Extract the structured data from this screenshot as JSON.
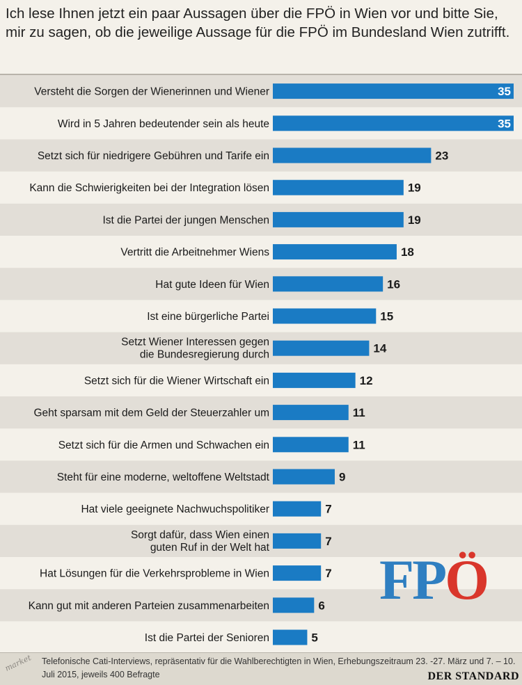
{
  "question": "Ich lese Ihnen jetzt ein paar Aussagen über die FPÖ in Wien vor und bitte Sie, mir zu sagen, ob die jeweilige Aussage für die FPÖ im Bundesland Wien zutrifft.",
  "logo": {
    "part1": "FP",
    "part2": "Ö"
  },
  "footer": {
    "badge": "market",
    "note": "Telefonische Cati-Interviews, repräsentativ für die Wahlberechtigten in Wien, Erhebungszeitraum 23. -27. März und 7. – 10. Juli 2015, jeweils 400 Befragte",
    "brand": "DER STANDARD"
  },
  "colors": {
    "bar": "#1a7bc4",
    "band": "#e2ded7",
    "background": "#f4f1ea",
    "logo_blue": "#2f7fc1",
    "logo_red": "#d9362b"
  },
  "chart_data": {
    "type": "bar",
    "orientation": "horizontal",
    "categories": [
      [
        "Versteht die Sorgen der Wienerinnen und Wiener"
      ],
      [
        "Wird in 5 Jahren bedeutender sein als heute"
      ],
      [
        "Setzt sich für niedrigere Gebühren und Tarife ein"
      ],
      [
        "Kann die Schwierigkeiten bei der Integration lösen"
      ],
      [
        "Ist die Partei der jungen Menschen"
      ],
      [
        "Vertritt die Arbeitnehmer Wiens"
      ],
      [
        "Hat gute Ideen für Wien"
      ],
      [
        "Ist eine bürgerliche Partei"
      ],
      [
        "Setzt Wiener Interessen gegen",
        "die Bundesregierung durch"
      ],
      [
        "Setzt sich für die Wiener Wirtschaft ein"
      ],
      [
        "Geht sparsam mit dem Geld der Steuerzahler um"
      ],
      [
        "Setzt sich für die Armen und Schwachen ein"
      ],
      [
        "Steht für eine moderne, weltoffene Weltstadt"
      ],
      [
        "Hat viele geeignete Nachwuchspolitiker"
      ],
      [
        "Sorgt dafür, dass Wien einen",
        "guten Ruf in der Welt hat"
      ],
      [
        "Hat Lösungen für die Verkehrsprobleme in Wien"
      ],
      [
        "Kann gut mit anderen Parteien zusammenarbeiten"
      ],
      [
        "Ist die Partei der Senioren"
      ]
    ],
    "values": [
      35,
      35,
      23,
      19,
      19,
      18,
      16,
      15,
      14,
      12,
      11,
      11,
      9,
      7,
      7,
      7,
      6,
      5
    ],
    "xlim": [
      0,
      35
    ],
    "grid": false,
    "value_labels": true
  }
}
